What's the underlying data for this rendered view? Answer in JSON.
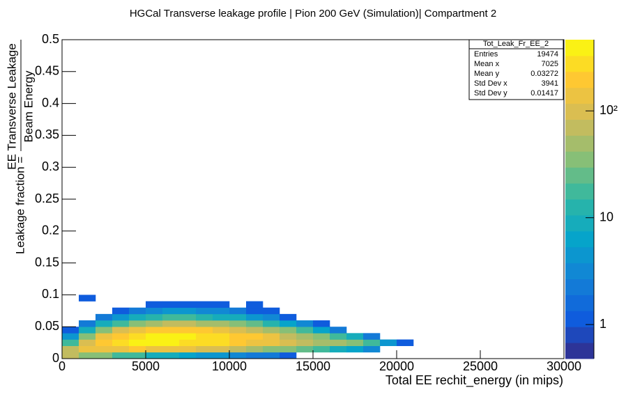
{
  "chart_data": {
    "type": "heatmap2d",
    "title": "HGCal Transverse leakage profile | Pion 200 GeV (Simulation)| Compartment 2",
    "xlabel": "Total EE rechit_energy (in mips)",
    "ylabel": {
      "prefix": "Leakage fraction =",
      "numerator": "EE Transverse Leakage",
      "denominator": "Beam Energy"
    },
    "xlim": [
      0,
      30000
    ],
    "xticks": [
      0,
      5000,
      10000,
      15000,
      20000,
      25000,
      30000
    ],
    "ylim": [
      0,
      0.5
    ],
    "yticks": [
      0,
      0.05,
      0.1,
      0.15,
      0.2,
      0.25,
      0.3,
      0.35,
      0.4,
      0.45,
      0.5
    ],
    "zlim": [
      0.48,
      464
    ],
    "zlog": true,
    "zticks": [
      1,
      10,
      {
        "value": 100,
        "label": "10²"
      }
    ],
    "palette": [
      "#352a87",
      "#0f5cdd",
      "#1481d6",
      "#06a4ca",
      "#2eb7a4",
      "#87bf77",
      "#d1bb59",
      "#fec832",
      "#f9fb0e"
    ],
    "xbins": [
      0,
      1000,
      2000,
      3000,
      4000,
      5000,
      6000,
      7000,
      8000,
      9000,
      10000,
      11000,
      12000,
      13000,
      14000,
      15000,
      16000,
      17000,
      18000,
      19000,
      20000,
      21000
    ],
    "ybins": [
      0,
      0.01,
      0.02,
      0.03,
      0.04,
      0.05,
      0.06,
      0.07,
      0.08,
      0.09,
      0.1
    ],
    "z": [
      [
        60,
        40,
        30,
        20,
        15,
        10,
        8,
        6,
        5,
        4,
        3,
        2,
        2,
        1,
        0,
        0,
        0,
        0,
        0,
        0,
        0
      ],
      [
        80,
        120,
        150,
        160,
        170,
        160,
        150,
        130,
        110,
        90,
        70,
        55,
        40,
        30,
        22,
        15,
        10,
        6,
        3,
        0,
        0
      ],
      [
        20,
        100,
        200,
        280,
        330,
        350,
        340,
        320,
        290,
        250,
        200,
        160,
        120,
        90,
        70,
        55,
        45,
        35,
        20,
        5,
        1
      ],
      [
        5,
        40,
        120,
        220,
        300,
        340,
        360,
        350,
        320,
        270,
        220,
        170,
        120,
        80,
        55,
        35,
        20,
        8,
        2,
        0,
        0
      ],
      [
        1,
        10,
        40,
        90,
        140,
        180,
        200,
        200,
        180,
        150,
        110,
        80,
        50,
        30,
        15,
        6,
        2,
        0,
        0,
        0,
        0
      ],
      [
        0,
        2,
        8,
        20,
        35,
        50,
        60,
        60,
        55,
        45,
        35,
        22,
        12,
        6,
        3,
        1,
        0,
        0,
        0,
        0,
        0
      ],
      [
        0,
        0,
        2,
        4,
        8,
        12,
        15,
        15,
        13,
        10,
        8,
        5,
        3,
        1,
        0,
        0,
        0,
        0,
        0,
        0,
        0
      ],
      [
        0,
        0,
        0,
        1,
        2,
        3,
        4,
        4,
        3,
        3,
        2,
        1,
        1,
        0,
        0,
        0,
        0,
        0,
        0,
        0,
        0
      ],
      [
        0,
        0,
        0,
        0,
        0,
        1,
        1,
        1,
        1,
        1,
        0,
        1,
        0,
        0,
        0,
        0,
        0,
        0,
        0,
        0,
        0
      ],
      [
        0,
        1,
        0,
        0,
        0,
        0,
        0,
        0,
        0,
        0,
        0,
        0,
        0,
        0,
        0,
        0,
        0,
        0,
        0,
        0,
        0
      ]
    ],
    "stats": {
      "title": "Tot_Leak_Fr_EE_2",
      "rows": [
        {
          "label": "Entries",
          "value": 19474
        },
        {
          "label": "Mean x",
          "value": 7025
        },
        {
          "label": "Mean y",
          "value": 0.03272
        },
        {
          "label": "Std Dev x",
          "value": 3941
        },
        {
          "label": "Std Dev y",
          "value": 0.01417
        }
      ]
    }
  }
}
